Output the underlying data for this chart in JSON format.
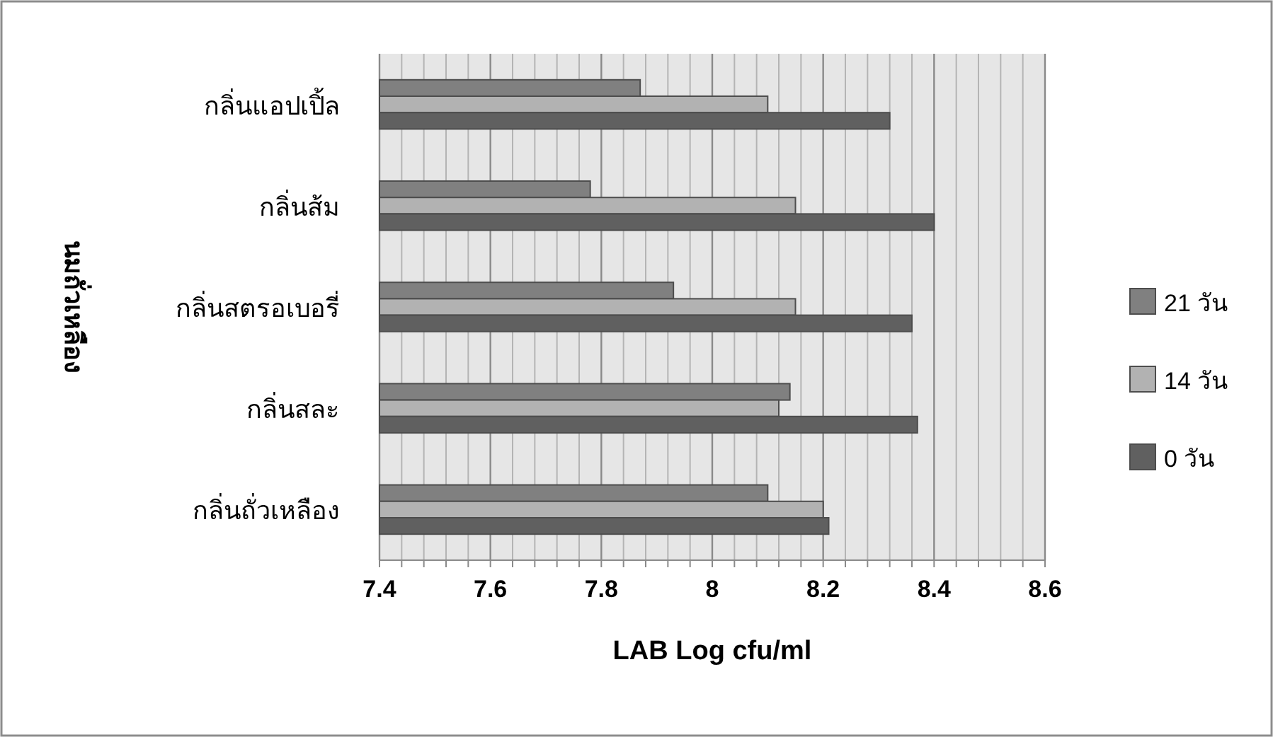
{
  "chart_data": {
    "type": "bar",
    "orientation": "horizontal",
    "xlabel": "LAB Log cfu/ml",
    "ylabel": "นมถั่วเหลือง",
    "categories": [
      "กลิ่นแอปเปิ้ล",
      "กลิ่นส้ม",
      "กลิ่นสตรอเบอรี่",
      "กลิ่นสละ",
      "กลิ่นถั่วเหลือง"
    ],
    "series": [
      {
        "name": "21 วัน",
        "color": "#808080",
        "values": [
          7.87,
          7.78,
          7.93,
          8.14,
          8.1
        ]
      },
      {
        "name": "14 วัน",
        "color": "#b2b2b2",
        "values": [
          8.1,
          8.15,
          8.15,
          8.12,
          8.2
        ]
      },
      {
        "name": "0 วัน",
        "color": "#606060",
        "values": [
          8.32,
          8.4,
          8.36,
          8.37,
          8.21
        ]
      }
    ],
    "xlim": [
      7.4,
      8.6
    ],
    "xticks": [
      7.4,
      {
        "value": 7.44,
        "label": null
      },
      {
        "value": 7.48,
        "label": null
      },
      {
        "value": 7.52,
        "label": null
      },
      {
        "value": 7.56,
        "label": null
      },
      7.6,
      {
        "value": 7.64,
        "label": null
      },
      {
        "value": 7.68,
        "label": null
      },
      {
        "value": 7.72,
        "label": null
      },
      {
        "value": 7.76,
        "label": null
      },
      7.8,
      {
        "value": 7.84,
        "label": null
      },
      {
        "value": 7.88,
        "label": null
      },
      {
        "value": 7.92,
        "label": null
      },
      {
        "value": 7.96,
        "label": null
      },
      8,
      {
        "value": 8.04,
        "label": null
      },
      {
        "value": 8.08,
        "label": null
      },
      {
        "value": 8.12,
        "label": null
      },
      {
        "value": 8.16,
        "label": null
      },
      8.2,
      {
        "value": 8.24,
        "label": null
      },
      {
        "value": 8.28,
        "label": null
      },
      {
        "value": 8.32,
        "label": null
      },
      {
        "value": 8.36,
        "label": null
      },
      8.4,
      {
        "value": 8.44,
        "label": null
      },
      {
        "value": 8.48,
        "label": null
      },
      {
        "value": 8.52,
        "label": null
      },
      {
        "value": 8.56,
        "label": null
      },
      8.6
    ],
    "grid": "x",
    "legend": "right"
  }
}
